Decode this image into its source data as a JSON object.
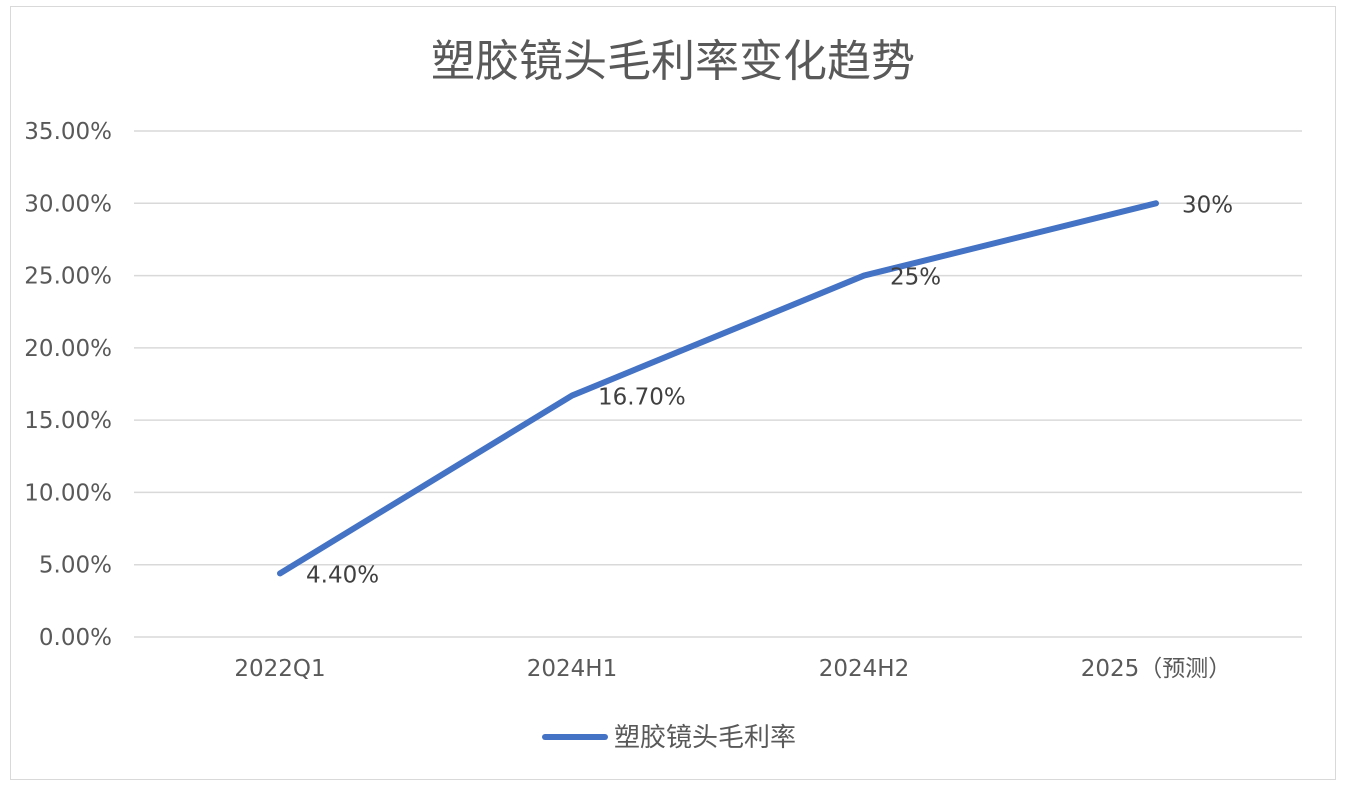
{
  "chart_data": {
    "type": "line",
    "title": "塑胶镜头毛利率变化趋势",
    "xlabel": "",
    "ylabel": "",
    "categories": [
      "2022Q1",
      "2024H1",
      "2024H2",
      "2025（预测）"
    ],
    "series": [
      {
        "name": "塑胶镜头毛利率",
        "values": [
          4.4,
          16.7,
          25,
          30
        ],
        "data_labels": [
          "4.40%",
          "16.70%",
          "25%",
          "30%"
        ]
      }
    ],
    "ylim": [
      0,
      35
    ],
    "y_ticks": [
      "0.00%",
      "5.00%",
      "10.00%",
      "15.00%",
      "20.00%",
      "25.00%",
      "30.00%",
      "35.00%"
    ],
    "grid": "horizontal",
    "legend_position": "bottom",
    "line_color": "#4472C4",
    "grid_color": "#d9d9d9",
    "text_color": "#595959"
  }
}
